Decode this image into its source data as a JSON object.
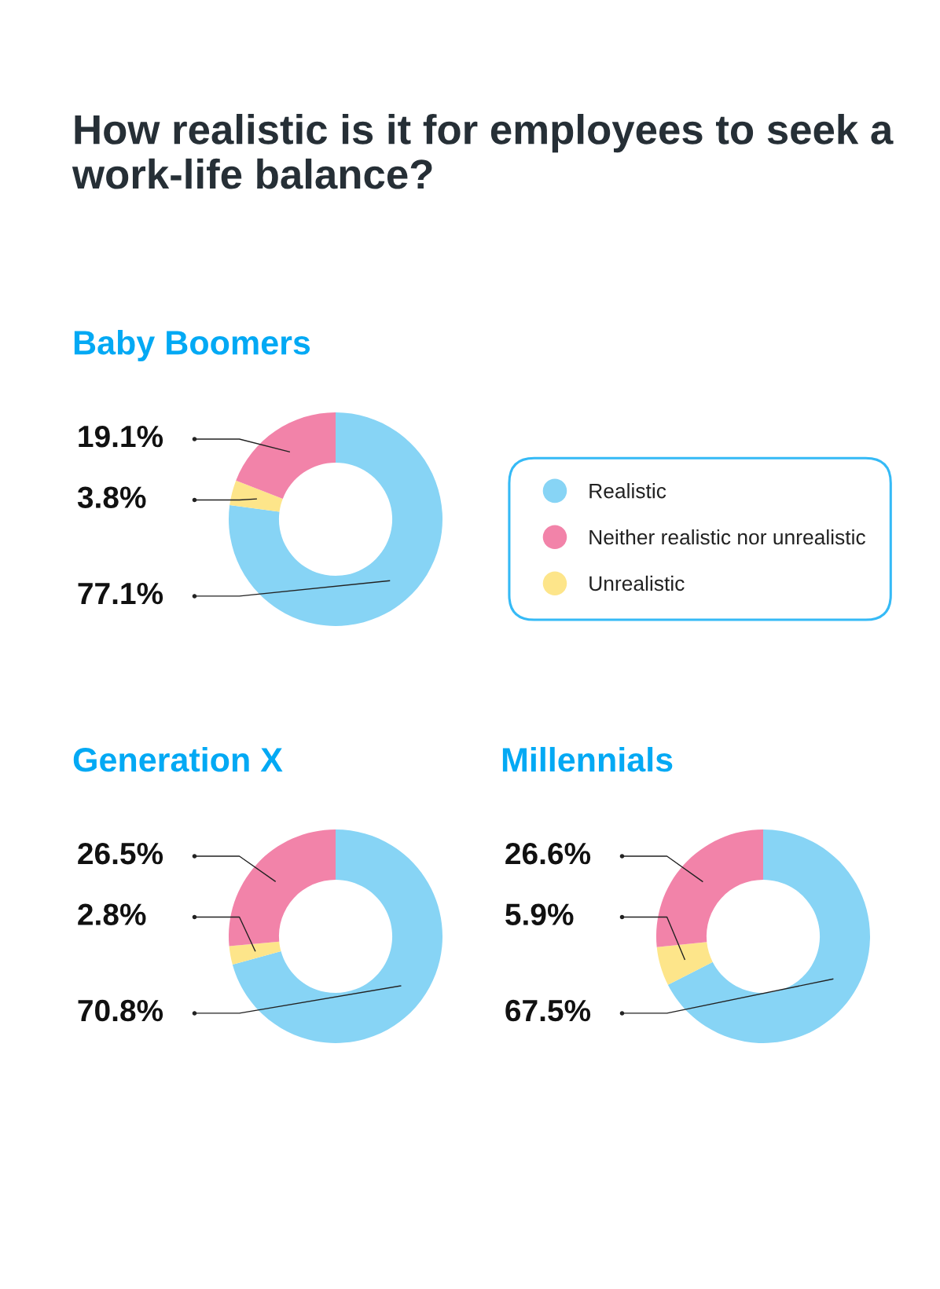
{
  "chart_data": [
    {
      "type": "donut",
      "title": "How realistic is it for employees to seek a work-life balance?",
      "subtitle": "Baby Boomers",
      "categories": [
        "Realistic",
        "Neither realistic nor unrealistic",
        "Unrealistic"
      ],
      "values": [
        77.1,
        19.1,
        3.8
      ],
      "colors": [
        "#87d4f5",
        "#f283a9",
        "#fde58a"
      ],
      "value_labels": [
        "77.1%",
        "19.1%",
        "3.8%"
      ],
      "legend": "right"
    },
    {
      "type": "donut",
      "title": "Generation X",
      "values": [
        70.8,
        26.5,
        2.8
      ],
      "colors": [
        "#87d4f5",
        "#f283a9",
        "#fde58a"
      ],
      "value_labels": [
        "70.8%",
        "26.5%",
        "2.8%"
      ]
    },
    {
      "type": "donut",
      "title": "Millennials",
      "values": [
        67.5,
        26.6,
        5.9
      ],
      "colors": [
        "#87d4f5",
        "#f283a9",
        "#fde58a"
      ],
      "value_labels": [
        "67.5%",
        "26.6%",
        "5.9%"
      ]
    }
  ]
}
